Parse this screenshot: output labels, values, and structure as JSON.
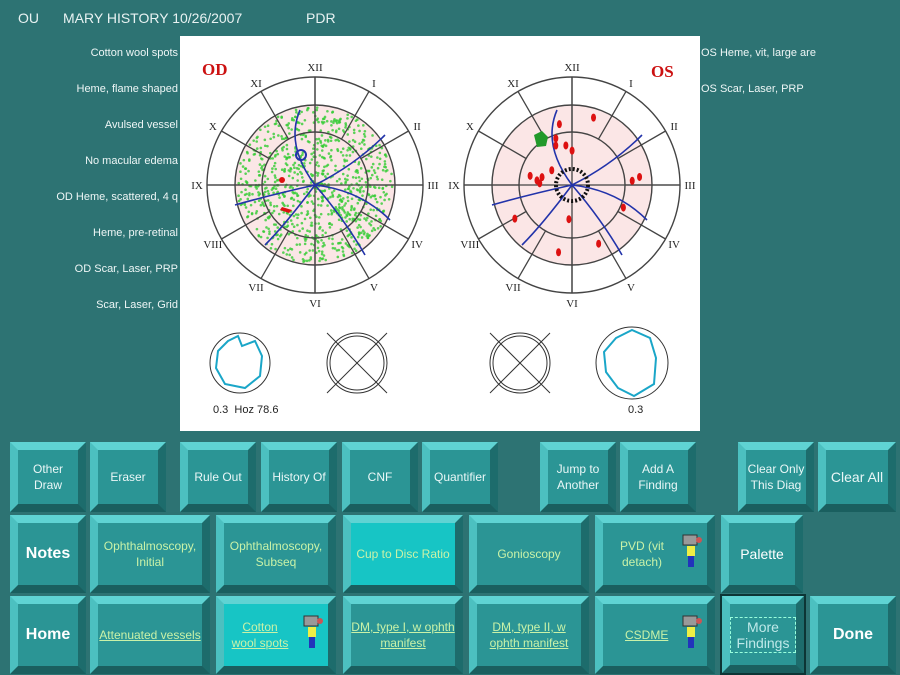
{
  "header": {
    "eye": "OU",
    "patient": "MARY HISTORY 10/26/2007",
    "diagnosis": "PDR"
  },
  "findings_left": [
    "Cotton wool spots",
    "Heme, flame shaped",
    "Avulsed vessel",
    "No macular edema",
    "OD Heme, scattered, 4 q",
    "Heme, pre-retinal",
    "OD Scar, Laser, PRP",
    "Scar, Laser, Grid"
  ],
  "findings_right": [
    "OS Heme, vit, large are",
    "OS Scar, Laser, PRP"
  ],
  "diagram": {
    "od_label": "OD",
    "os_label": "OS",
    "clock_numerals": [
      "XII",
      "I",
      "II",
      "III",
      "IV",
      "V",
      "VI",
      "VII",
      "VIII",
      "IX",
      "X",
      "XI"
    ],
    "od_cup_caption": "0.3  Hoz 78.6",
    "os_cup_caption": "0.3",
    "colors": {
      "label": "#cc1111",
      "vessel": "#2233aa",
      "heme": "#dd1111",
      "laser": "#33cc33",
      "cup": "#1aa6c8"
    }
  },
  "toolbar_row1": [
    "Other Draw",
    "Eraser",
    "Rule Out",
    "History Of",
    "CNF",
    "Quantifier",
    "Jump to Another",
    "Add A Finding",
    "Clear Only This Diag",
    "Clear All"
  ],
  "row2": {
    "notes": "Notes",
    "items": [
      "Ophthalmoscopy, Initial",
      "Ophthalmoscopy, Subseq",
      "Cup to Disc Ratio",
      "Gonioscopy",
      "PVD (vit detach)"
    ],
    "palette": "Palette"
  },
  "row3": {
    "home": "Home",
    "items": [
      "Attenuated vessels",
      "Cotton wool spots",
      "DM, type I, w ophth manifest",
      "DM, type II, w ophth manifest",
      "CSDME"
    ],
    "more": "More Findings",
    "done": "Done"
  }
}
